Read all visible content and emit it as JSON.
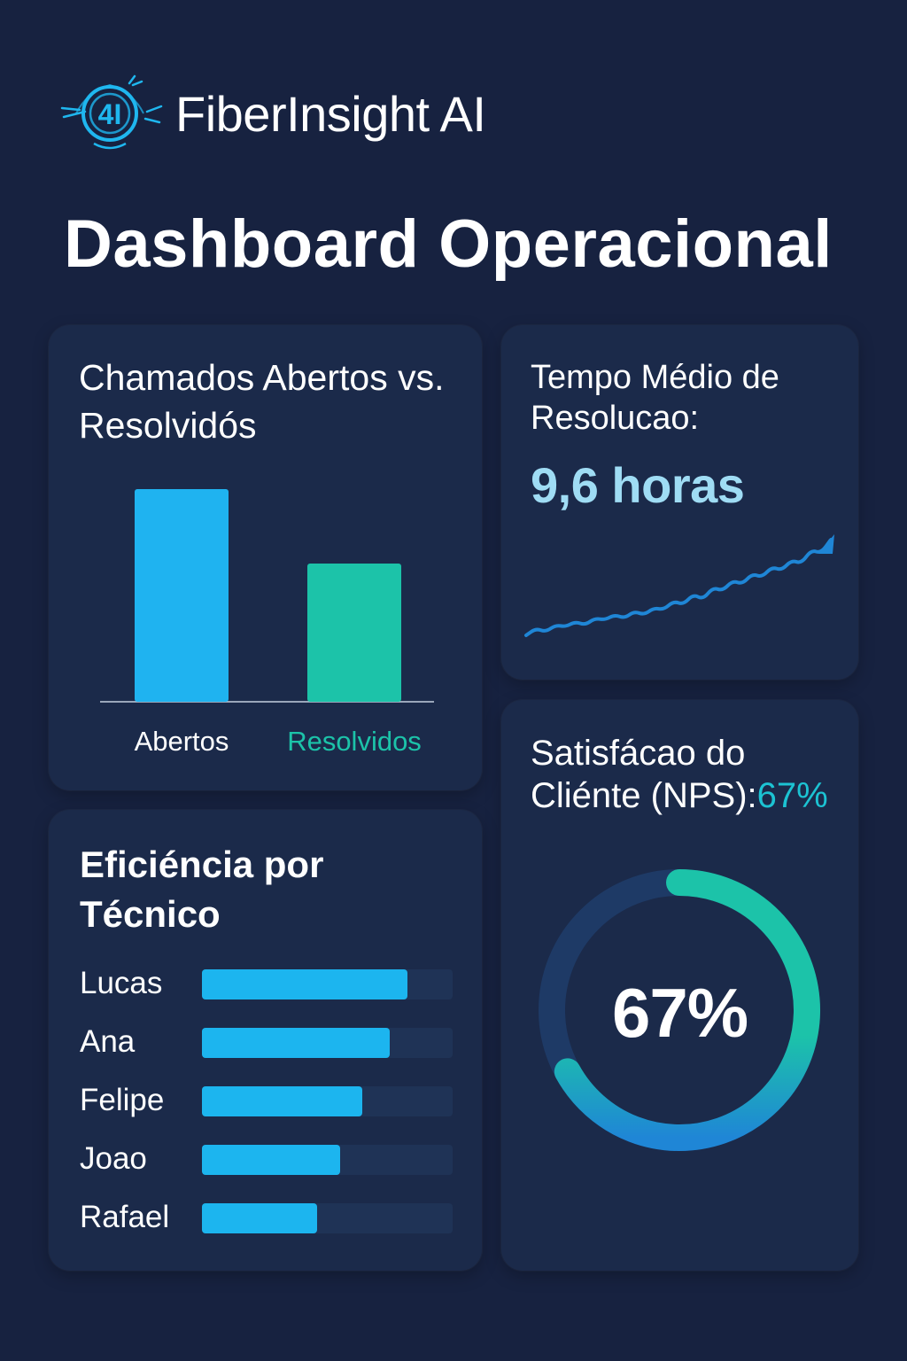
{
  "header": {
    "logo_text": "4I",
    "app_title": "FiberInsight AI",
    "page_title": "Dashboard Operacional",
    "colors": {
      "background": "#172240",
      "card": "#1b2a4a",
      "accent_blue": "#1cb5ef",
      "accent_teal": "#1cc3a9"
    }
  },
  "cards": {
    "tickets": {
      "title": "Chamados Abertos vs. Resolvidós",
      "chart_data": {
        "type": "bar",
        "categories": [
          "Abertos",
          "Resolvidos"
        ],
        "values": [
          100,
          65
        ],
        "colors": [
          "#1fb3f0",
          "#1cc3a9"
        ],
        "ylim": [
          0,
          100
        ],
        "grid": false
      }
    },
    "resolution_time": {
      "title": "Tempo Médio de Resolucao:",
      "value": "9,6 horas",
      "chart_data": {
        "type": "line",
        "values": [
          2,
          4,
          3,
          5,
          4.5,
          6,
          5,
          7,
          6.5,
          8,
          7,
          9,
          8,
          10,
          9.5,
          12,
          11,
          14,
          12.5,
          16,
          15,
          18,
          17,
          20,
          19,
          22,
          21,
          24,
          23,
          27,
          26,
          30
        ],
        "color": "#1f86d6"
      }
    },
    "efficiency": {
      "title": "Eficiéncia por Técnico",
      "chart_data": {
        "type": "bar",
        "orientation": "horizontal",
        "categories": [
          "Lucas",
          "Ana",
          "Felipe",
          "Joao",
          "Rafael"
        ],
        "values": [
          82,
          75,
          64,
          55,
          46
        ],
        "xlim": [
          0,
          100
        ],
        "color": "#1cb5ef"
      }
    },
    "nps": {
      "title": "Satisfácao do Cliénte (NPS):",
      "title_value": "67%",
      "center_label": "67%",
      "chart_data": {
        "type": "pie",
        "style": "donut",
        "value": 67,
        "max": 100,
        "colors": [
          "#1cc3a9",
          "#1f86d6",
          "#1e3a66"
        ]
      }
    }
  }
}
